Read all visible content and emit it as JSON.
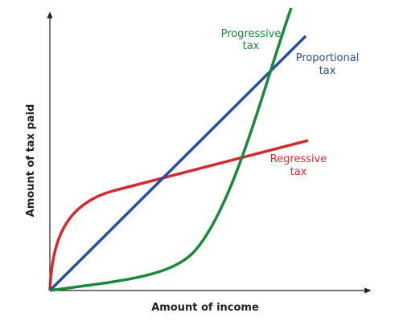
{
  "diagram": {
    "x_axis_label": "Amount of income",
    "y_axis_label": "Amount of tax paid",
    "curves": [
      {
        "label": [
          "Progressive",
          "tax"
        ],
        "color": "#1a8a3a"
      },
      {
        "label": [
          "Proportional",
          "tax"
        ],
        "color": "#2a4fa0"
      },
      {
        "label": [
          "Regressive",
          "tax"
        ],
        "color": "#d42a2f"
      }
    ]
  }
}
